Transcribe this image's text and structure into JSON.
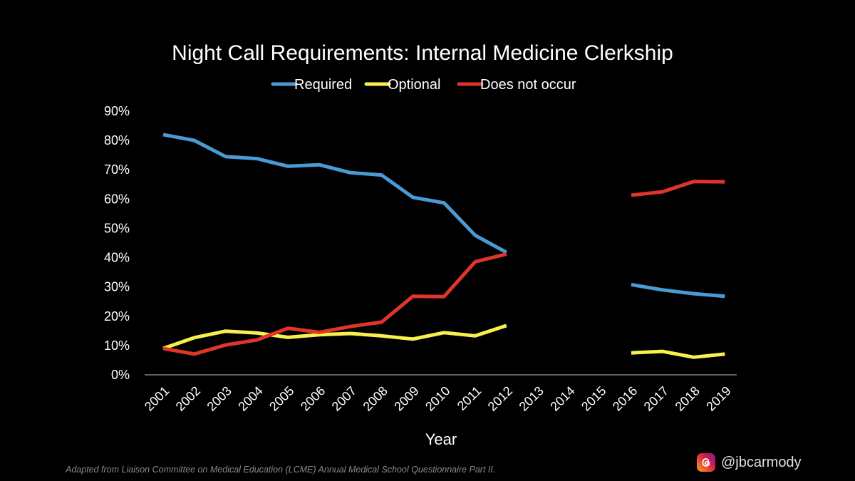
{
  "chart_data": {
    "type": "line",
    "title": "Night Call Requirements: Internal Medicine Clerkship",
    "xlabel": "Year",
    "ylabel": "",
    "categories": [
      "2001",
      "2002",
      "2003",
      "2004",
      "2005",
      "2006",
      "2007",
      "2008",
      "2009",
      "2010",
      "2011",
      "2012",
      "2013",
      "2014",
      "2015",
      "2016",
      "2017",
      "2018",
      "2019"
    ],
    "ylim": [
      0,
      0.9
    ],
    "yticks": [
      {
        "value": 0,
        "label": "0%"
      },
      {
        "value": 0.1,
        "label": "10%"
      },
      {
        "value": 0.2,
        "label": "20%"
      },
      {
        "value": 0.3,
        "label": "30%"
      },
      {
        "value": 0.4,
        "label": "40%"
      },
      {
        "value": 0.5,
        "label": "50%"
      },
      {
        "value": 0.6,
        "label": "60%"
      },
      {
        "value": 0.7,
        "label": "70%"
      },
      {
        "value": 0.8,
        "label": "80%"
      },
      {
        "value": 0.9,
        "label": "90%"
      }
    ],
    "grid": false,
    "legend_position": "top-center",
    "series": [
      {
        "name": "Required",
        "color": "#4a9ad4",
        "values": [
          0.82,
          0.8,
          0.745,
          0.738,
          0.712,
          0.717,
          0.69,
          0.682,
          0.606,
          0.587,
          0.476,
          0.418,
          null,
          null,
          null,
          0.308,
          0.29,
          0.277,
          0.268
        ]
      },
      {
        "name": "Optional",
        "color": "#f7f04d",
        "values": [
          0.09,
          0.127,
          0.149,
          0.143,
          0.128,
          0.137,
          0.141,
          0.133,
          0.122,
          0.144,
          0.133,
          0.168,
          null,
          null,
          null,
          0.075,
          0.08,
          0.06,
          0.071
        ]
      },
      {
        "name": "Does not occur",
        "color": "#e1342a",
        "values": [
          0.09,
          0.071,
          0.102,
          0.119,
          0.159,
          0.145,
          0.165,
          0.18,
          0.268,
          0.267,
          0.386,
          0.412,
          null,
          null,
          null,
          0.613,
          0.625,
          0.66,
          0.659
        ]
      }
    ]
  },
  "footer": {
    "source": "Adapted from Liaison Committee on Medical Education (LCME) Annual Medical School Questionnaire Part II.",
    "handle": "@jbcarmody"
  },
  "icons": {
    "credit_logo": "threads-icon"
  }
}
